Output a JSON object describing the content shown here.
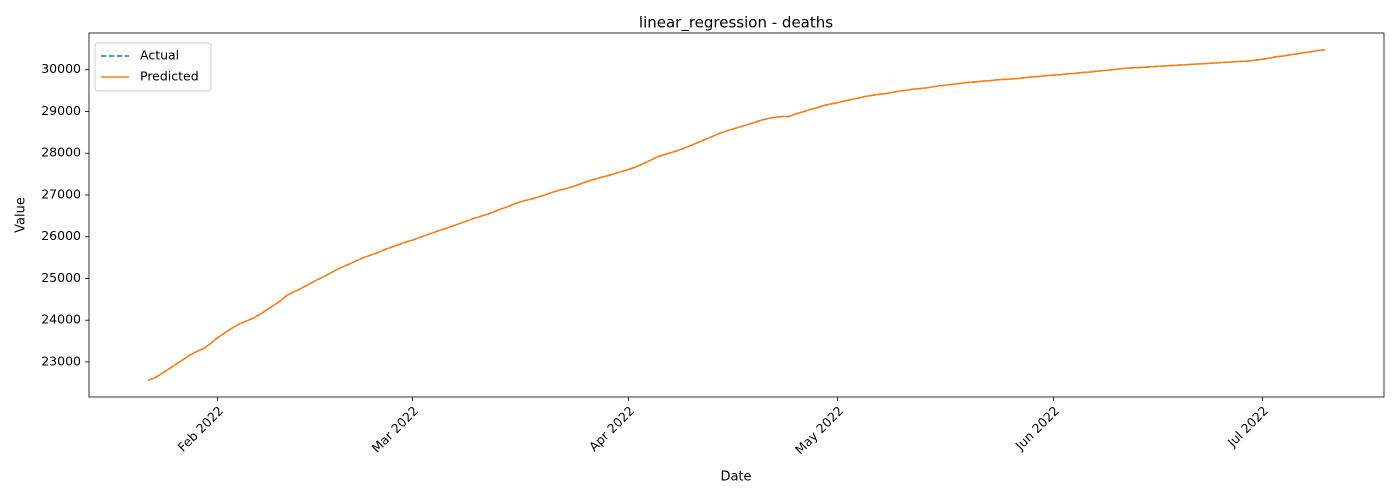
{
  "chart_data": {
    "type": "line",
    "title": "linear_regression - deaths",
    "x_label": "Date",
    "y_label": "Value",
    "legend": "upper left",
    "ylim": [
      22160,
      30880
    ],
    "yticks": [
      23000,
      24000,
      25000,
      26000,
      27000,
      28000,
      29000,
      30000
    ],
    "categories": [
      null,
      null,
      null,
      null,
      null,
      null,
      null,
      null,
      null,
      null,
      "Feb 2022",
      null,
      null,
      null,
      null,
      null,
      null,
      null,
      null,
      null,
      null,
      null,
      null,
      null,
      null,
      null,
      null,
      null,
      null,
      null,
      null,
      null,
      null,
      null,
      null,
      null,
      null,
      null,
      "Mar 2022",
      null,
      null,
      null,
      null,
      null,
      null,
      null,
      null,
      null,
      null,
      null,
      null,
      null,
      null,
      null,
      null,
      null,
      null,
      null,
      null,
      null,
      null,
      null,
      null,
      null,
      null,
      null,
      null,
      null,
      null,
      "Apr 2022",
      null,
      null,
      null,
      null,
      null,
      null,
      null,
      null,
      null,
      null,
      null,
      null,
      null,
      null,
      null,
      null,
      null,
      null,
      null,
      null,
      null,
      null,
      null,
      null,
      null,
      null,
      null,
      null,
      null,
      "May 2022",
      null,
      null,
      null,
      null,
      null,
      null,
      null,
      null,
      null,
      null,
      null,
      null,
      null,
      null,
      null,
      null,
      null,
      null,
      null,
      null,
      null,
      null,
      null,
      null,
      null,
      null,
      null,
      null,
      null,
      null,
      "Jun 2022",
      null,
      null,
      null,
      null,
      null,
      null,
      null,
      null,
      null,
      null,
      null,
      null,
      null,
      null,
      null,
      null,
      null,
      null,
      null,
      null,
      null,
      null,
      null,
      null,
      null,
      null,
      null,
      null,
      null,
      "Jul 2022",
      null,
      null,
      null,
      null,
      null,
      null,
      null,
      null,
      null
    ],
    "series": [
      {
        "name": "Actual",
        "color": "#1f77b4",
        "style": "dashed",
        "values": [
          22560,
          22620,
          22720,
          22830,
          22940,
          23050,
          23160,
          23250,
          23320,
          23440,
          23580,
          23690,
          23800,
          23900,
          23970,
          24040,
          24130,
          24240,
          24350,
          24460,
          24600,
          24680,
          24760,
          24850,
          24940,
          25020,
          25110,
          25200,
          25280,
          25350,
          25430,
          25500,
          25560,
          25620,
          25690,
          25750,
          25810,
          25870,
          25920,
          25980,
          26040,
          26100,
          26160,
          26210,
          26270,
          26330,
          26390,
          26450,
          26500,
          26550,
          26620,
          26680,
          26740,
          26810,
          26860,
          26900,
          26950,
          27000,
          27060,
          27110,
          27150,
          27200,
          27260,
          27320,
          27370,
          27420,
          27460,
          27510,
          27560,
          27610,
          27670,
          27740,
          27820,
          27900,
          27960,
          28010,
          28060,
          28120,
          28190,
          28260,
          28330,
          28400,
          28470,
          28530,
          28580,
          28630,
          28680,
          28730,
          28790,
          28830,
          28860,
          28880,
          28880,
          28940,
          28990,
          29040,
          29090,
          29140,
          29180,
          29210,
          29250,
          29290,
          29320,
          29360,
          29390,
          29410,
          29430,
          29460,
          29490,
          29510,
          29540,
          29550,
          29570,
          29600,
          29620,
          29640,
          29660,
          29680,
          29700,
          29710,
          29730,
          29740,
          29760,
          29770,
          29780,
          29790,
          29810,
          29830,
          29840,
          29860,
          29870,
          29880,
          29900,
          29910,
          29930,
          29940,
          29960,
          29980,
          29990,
          30010,
          30030,
          30040,
          30050,
          30060,
          30070,
          30080,
          30090,
          30100,
          30110,
          30120,
          30130,
          30140,
          30150,
          30160,
          30170,
          30180,
          30190,
          30200,
          30210,
          30230,
          30250,
          30280,
          30310,
          30330,
          30360,
          30380,
          30410,
          30430,
          30460,
          30480
        ]
      },
      {
        "name": "Predicted",
        "color": "#ff7f0e",
        "style": "solid",
        "values": [
          22560,
          22620,
          22720,
          22830,
          22940,
          23050,
          23160,
          23250,
          23320,
          23440,
          23580,
          23690,
          23800,
          23900,
          23970,
          24040,
          24130,
          24240,
          24350,
          24460,
          24600,
          24680,
          24760,
          24850,
          24940,
          25020,
          25110,
          25200,
          25280,
          25350,
          25430,
          25500,
          25560,
          25620,
          25690,
          25750,
          25810,
          25870,
          25920,
          25980,
          26040,
          26100,
          26160,
          26210,
          26270,
          26330,
          26390,
          26450,
          26500,
          26550,
          26620,
          26680,
          26740,
          26810,
          26860,
          26900,
          26950,
          27000,
          27060,
          27110,
          27150,
          27200,
          27260,
          27320,
          27370,
          27420,
          27460,
          27510,
          27560,
          27610,
          27670,
          27740,
          27820,
          27900,
          27960,
          28010,
          28060,
          28120,
          28190,
          28260,
          28330,
          28400,
          28470,
          28530,
          28580,
          28630,
          28680,
          28730,
          28790,
          28830,
          28860,
          28880,
          28880,
          28940,
          28990,
          29040,
          29090,
          29140,
          29180,
          29210,
          29250,
          29290,
          29320,
          29360,
          29390,
          29410,
          29430,
          29460,
          29490,
          29510,
          29540,
          29550,
          29570,
          29600,
          29620,
          29640,
          29660,
          29680,
          29700,
          29710,
          29730,
          29740,
          29760,
          29770,
          29780,
          29790,
          29810,
          29830,
          29840,
          29860,
          29870,
          29880,
          29900,
          29910,
          29930,
          29940,
          29960,
          29980,
          29990,
          30010,
          30030,
          30040,
          30050,
          30060,
          30070,
          30080,
          30090,
          30100,
          30110,
          30120,
          30130,
          30140,
          30150,
          30160,
          30170,
          30180,
          30190,
          30200,
          30210,
          30230,
          30250,
          30280,
          30310,
          30330,
          30360,
          30380,
          30410,
          30430,
          30460,
          30480
        ]
      }
    ]
  }
}
